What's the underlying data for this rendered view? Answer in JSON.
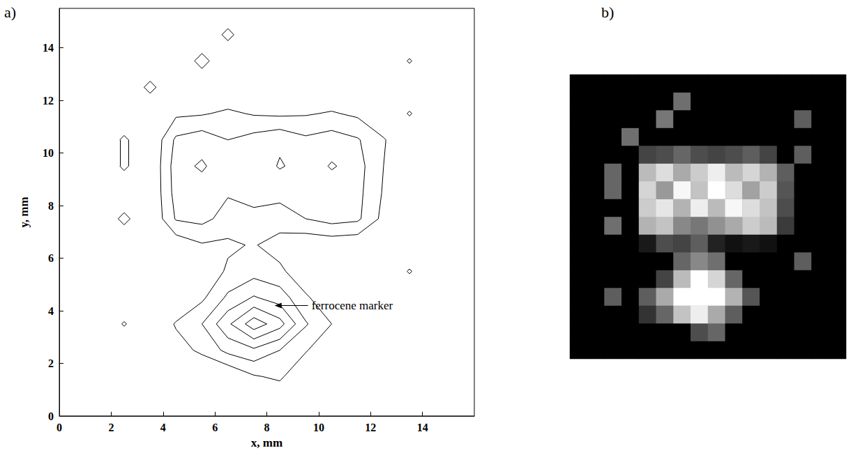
{
  "chart_data": {
    "type": "contour",
    "panel": "a)",
    "x_label": "x, mm",
    "y_label": "y, mm",
    "xlim": [
      0,
      16
    ],
    "ylim": [
      0,
      15.5
    ],
    "xticks": [
      0,
      2,
      4,
      6,
      8,
      10,
      12,
      14
    ],
    "yticks": [
      0,
      2,
      4,
      6,
      8,
      10,
      12,
      14
    ],
    "color": "#000000",
    "levels": [
      1,
      2,
      3,
      4,
      5
    ],
    "x": [
      0.5,
      1.5,
      2.5,
      3.5,
      4.5,
      5.5,
      6.5,
      7.5,
      8.5,
      9.5,
      10.5,
      11.5,
      12.5,
      13.5,
      14.5,
      15.5
    ],
    "y": [
      0.5,
      1.5,
      2.5,
      3.5,
      4.5,
      5.5,
      6.5,
      7.5,
      8.5,
      9.5,
      10.5,
      11.5,
      12.5,
      13.5,
      14.5,
      15.5
    ],
    "z": [
      [
        0,
        0,
        0,
        0,
        0,
        0,
        0,
        0,
        0,
        0,
        0,
        0,
        0,
        0,
        0,
        0
      ],
      [
        0,
        0,
        0,
        0,
        0,
        0,
        0,
        0.9,
        1.2,
        0,
        0,
        0,
        0,
        0,
        0,
        0
      ],
      [
        0,
        0,
        0,
        0,
        0.6,
        1.2,
        2.3,
        2.8,
        2.0,
        1.1,
        0,
        0,
        0,
        0,
        0,
        0
      ],
      [
        0,
        0,
        1.1,
        0,
        1.1,
        2.0,
        3.8,
        5.6,
        4.4,
        2.1,
        1.0,
        0,
        0,
        0,
        0,
        0
      ],
      [
        0,
        0,
        0,
        0,
        0,
        0.8,
        2.2,
        3.1,
        2.5,
        1.2,
        0,
        0,
        0,
        0,
        0,
        0
      ],
      [
        0,
        0,
        0,
        0,
        0,
        0,
        1.2,
        1.6,
        1.3,
        0,
        0,
        0,
        0,
        1.1,
        0,
        0
      ],
      [
        0,
        0,
        0,
        0,
        0.3,
        0.9,
        0.8,
        1.1,
        0.4,
        0.2,
        0.3,
        0.2,
        0,
        0,
        0,
        0
      ],
      [
        0,
        0,
        1.3,
        0,
        2.1,
        2.3,
        1.6,
        1.4,
        1.7,
        2.0,
        2.4,
        2.2,
        0.7,
        0,
        0,
        0
      ],
      [
        0,
        0,
        0,
        0,
        2.4,
        2.7,
        2.1,
        2.8,
        2.2,
        2.9,
        2.6,
        2.3,
        0.9,
        0,
        0,
        0
      ],
      [
        0,
        0,
        1.2,
        0,
        2.5,
        1.8,
        2.9,
        2.3,
        3.1,
        2.6,
        1.9,
        2.4,
        1.0,
        0,
        0,
        0
      ],
      [
        0,
        0,
        1.2,
        0,
        2.2,
        2.6,
        2.0,
        2.4,
        2.8,
        2.2,
        2.5,
        2.1,
        1.1,
        0,
        0,
        0
      ],
      [
        0,
        0,
        0,
        0,
        0.8,
        0.9,
        1.2,
        0.9,
        0.8,
        0.9,
        1.1,
        0.8,
        0,
        1.1,
        0,
        0
      ],
      [
        0,
        0,
        0,
        1.3,
        0,
        0,
        0,
        0,
        0,
        0,
        0,
        0,
        0,
        0,
        0,
        0
      ],
      [
        0,
        0,
        0,
        0,
        0,
        1.4,
        0,
        0,
        0,
        0,
        0,
        0,
        0,
        1.1,
        0,
        0
      ],
      [
        0,
        0,
        0,
        0,
        0,
        0,
        1.3,
        0,
        0,
        0,
        0,
        0,
        0,
        0,
        0,
        0
      ],
      [
        0,
        0,
        0,
        0,
        0,
        0,
        0,
        0,
        0,
        0,
        0,
        0,
        0,
        0,
        0,
        0
      ]
    ],
    "annotations": [
      {
        "text": "ferrocene marker",
        "x": 8.3,
        "y": 4.2
      }
    ],
    "image": {
      "panel": "b)",
      "type": "heatmap",
      "gray_range": [
        0,
        3
      ]
    }
  }
}
